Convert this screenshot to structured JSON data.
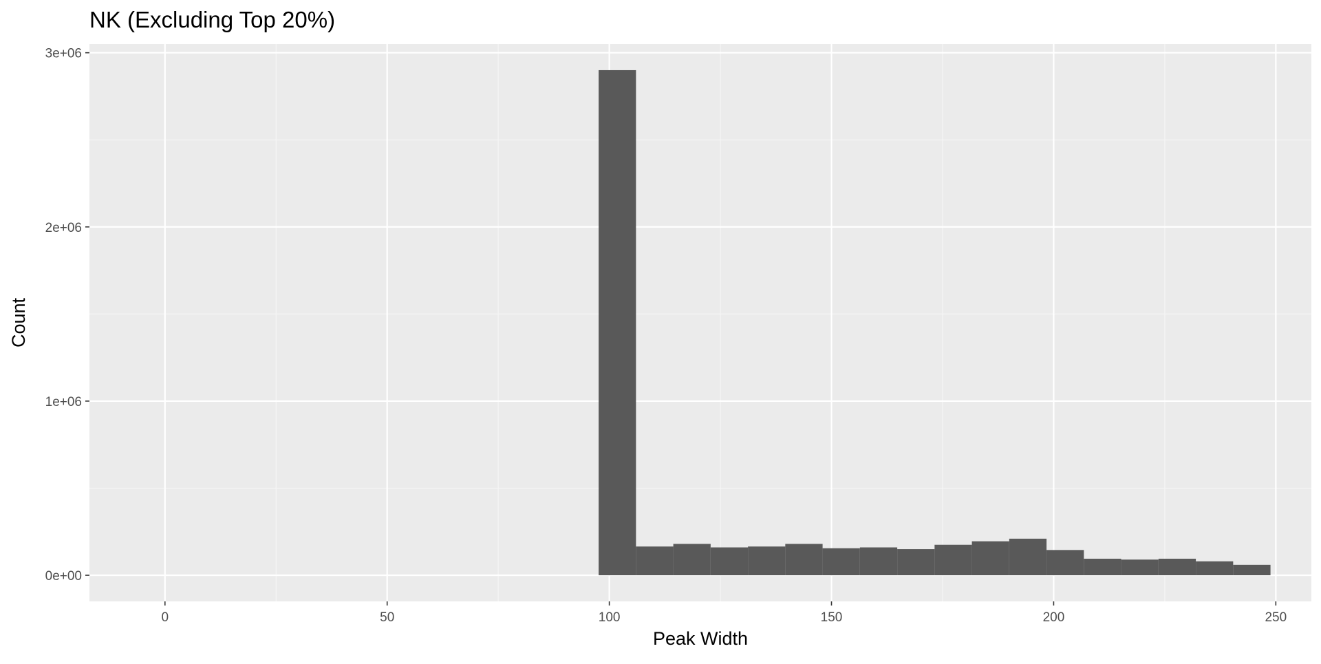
{
  "chart_data": {
    "type": "bar",
    "title": "NK (Excluding Top 20%)",
    "xlabel": "Peak Width",
    "ylabel": "Count",
    "xlim": [
      -17,
      258
    ],
    "ylim": [
      -150000,
      3050000
    ],
    "x_ticks": [
      0,
      50,
      100,
      150,
      200,
      250
    ],
    "x_tick_labels": [
      "0",
      "50",
      "100",
      "150",
      "200",
      "250"
    ],
    "y_ticks": [
      0,
      1000000,
      2000000,
      3000000
    ],
    "y_tick_labels": [
      "0e+00",
      "1e+06",
      "2e+06",
      "3e+06"
    ],
    "grid": true,
    "bin_width": 8.4,
    "bins": [
      {
        "x0": 97.6,
        "x1": 106.0,
        "count": 2900000
      },
      {
        "x0": 106.0,
        "x1": 114.4,
        "count": 165000
      },
      {
        "x0": 114.4,
        "x1": 122.8,
        "count": 180000
      },
      {
        "x0": 122.8,
        "x1": 131.2,
        "count": 160000
      },
      {
        "x0": 131.2,
        "x1": 139.6,
        "count": 165000
      },
      {
        "x0": 139.6,
        "x1": 148.0,
        "count": 180000
      },
      {
        "x0": 148.0,
        "x1": 156.4,
        "count": 155000
      },
      {
        "x0": 156.4,
        "x1": 164.8,
        "count": 160000
      },
      {
        "x0": 164.8,
        "x1": 173.2,
        "count": 150000
      },
      {
        "x0": 173.2,
        "x1": 181.6,
        "count": 175000
      },
      {
        "x0": 181.6,
        "x1": 190.0,
        "count": 195000
      },
      {
        "x0": 190.0,
        "x1": 198.4,
        "count": 210000
      },
      {
        "x0": 198.4,
        "x1": 206.8,
        "count": 145000
      },
      {
        "x0": 206.8,
        "x1": 215.2,
        "count": 95000
      },
      {
        "x0": 215.2,
        "x1": 223.6,
        "count": 90000
      },
      {
        "x0": 223.6,
        "x1": 232.0,
        "count": 95000
      },
      {
        "x0": 232.0,
        "x1": 240.4,
        "count": 80000
      },
      {
        "x0": 240.4,
        "x1": 248.8,
        "count": 60000
      }
    ],
    "colors": {
      "panel_background": "#ebebeb",
      "grid_major": "#ffffff",
      "grid_minor": "#f5f5f5",
      "bar_fill": "#595959",
      "tick_mark": "#333333"
    }
  }
}
